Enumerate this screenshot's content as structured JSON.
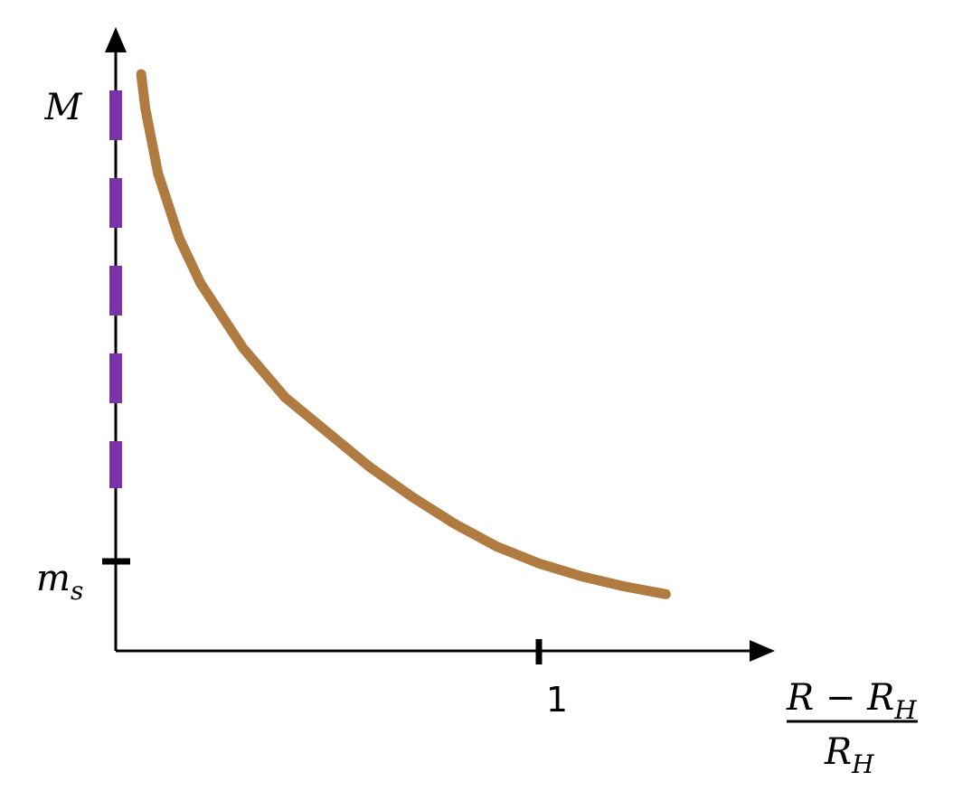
{
  "chart_data": {
    "type": "line",
    "axes": {
      "x": {
        "label_numerator": "R − R",
        "label_numerator_sub": "H",
        "label_denominator": "R",
        "label_denominator_sub": "H",
        "arrow": true
      },
      "y": {
        "arrow": true
      }
    },
    "y_tick_labels": {
      "M": "M",
      "ms_main": "m",
      "ms_sub": "s"
    },
    "x_tick_labels": {
      "one": "1"
    },
    "x_ticks": [
      1
    ],
    "reference_value": {
      "name": "M",
      "style": "dashed",
      "color": "#7a33a8"
    },
    "series": [
      {
        "x": [
          0.06,
          0.07,
          0.1,
          0.15,
          0.2,
          0.3,
          0.4,
          0.5,
          0.6,
          0.7,
          0.8,
          0.9,
          1.0,
          1.1,
          1.2,
          1.3
        ],
        "y": [
          5.8,
          5.45,
          4.8,
          4.15,
          3.7,
          3.05,
          2.55,
          2.2,
          1.85,
          1.55,
          1.28,
          1.05,
          0.88,
          0.75,
          0.65,
          0.57
        ],
        "color": "#b07b40"
      }
    ],
    "xlim": [
      0,
      1.5
    ],
    "ylim": [
      0,
      6.2
    ],
    "m_s_value": 0.9,
    "M_value": 6.0,
    "grid": false
  }
}
